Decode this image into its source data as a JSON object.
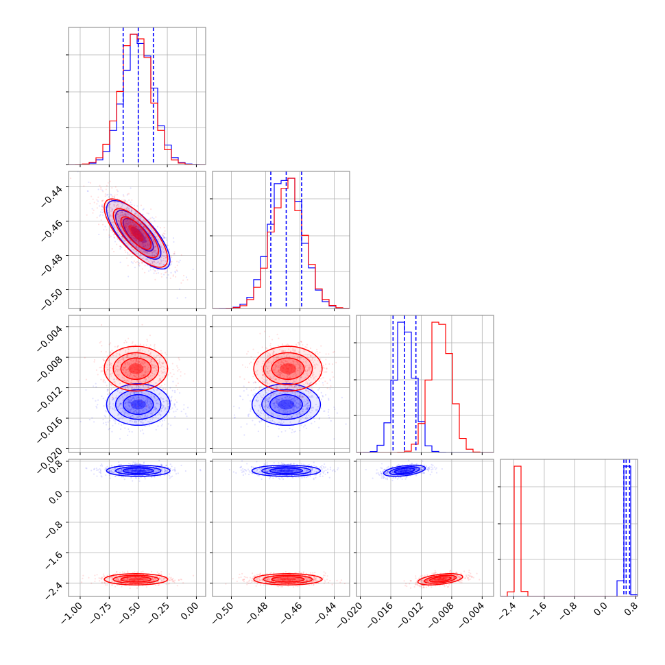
{
  "chart_data": {
    "type": "corner",
    "parameters": 4,
    "colors": {
      "series_a": "#0000ff",
      "series_b": "#ff0000",
      "grid": "#b0b0b0",
      "frame": "#808080"
    },
    "series": [
      {
        "color": "#0000ff",
        "means": [
          -0.5,
          -0.468,
          -0.0142,
          0.55
        ],
        "sigmas": [
          0.13,
          0.0095,
          0.0013,
          0.07
        ],
        "quantiles_diag": [
          [
            -0.63,
            -0.5,
            -0.37
          ],
          [
            -0.477,
            -0.468,
            -0.459
          ],
          [
            -0.0157,
            -0.0142,
            -0.0127
          ],
          [
            0.49,
            0.55,
            0.64
          ]
        ]
      },
      {
        "color": "#ff0000",
        "means": [
          -0.52,
          -0.467,
          -0.0095,
          -2.3
        ],
        "sigmas": [
          0.13,
          0.0095,
          0.0014,
          0.07
        ]
      }
    ],
    "axes": [
      {
        "range": [
          -1.1,
          0.08
        ],
        "ticks": [
          -1.0,
          -0.75,
          -0.5,
          -0.25,
          0.0
        ],
        "tick_labels": [
          "−1.00",
          "−0.75",
          "−0.50",
          "−0.25",
          "0.00"
        ]
      },
      {
        "range": [
          -0.511,
          -0.431
        ],
        "ticks": [
          -0.5,
          -0.48,
          -0.46,
          -0.44
        ],
        "tick_labels": [
          "−0.50",
          "−0.48",
          "−0.46",
          "−0.44"
        ]
      },
      {
        "range": [
          -0.0205,
          -0.0025
        ],
        "ticks": [
          -0.02,
          -0.016,
          -0.012,
          -0.008,
          -0.004
        ],
        "tick_labels": [
          "−0.020",
          "−0.016",
          "−0.012",
          "−0.008",
          "−0.004"
        ]
      },
      {
        "range": [
          -2.75,
          0.85
        ],
        "ticks": [
          -2.4,
          -1.6,
          -0.8,
          0.0,
          0.8
        ],
        "tick_labels": [
          "−2.4",
          "−1.6",
          "−0.8",
          "0.0",
          "0.8"
        ]
      }
    ],
    "diagonal_ylim_fraction": [
      0,
      1.05
    ],
    "grid": true
  }
}
